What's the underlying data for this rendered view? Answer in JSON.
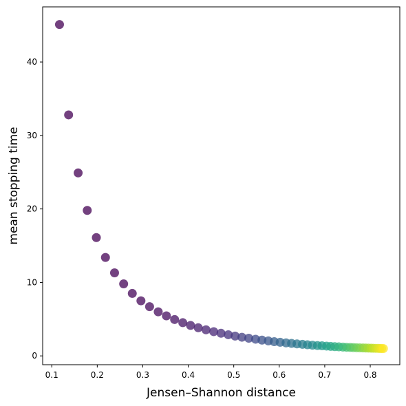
{
  "chart_data": {
    "type": "scatter",
    "title": "",
    "xlabel": "Jensen–Shannon distance",
    "ylabel": "mean stopping time",
    "xlim": [
      0.08,
      0.865
    ],
    "ylim": [
      -1.2,
      47.5
    ],
    "xticks": [
      0.1,
      0.2,
      0.3,
      0.4,
      0.5,
      0.6,
      0.7,
      0.8
    ],
    "xtick_labels": [
      "0.1",
      "0.2",
      "0.3",
      "0.4",
      "0.5",
      "0.6",
      "0.7",
      "0.8"
    ],
    "yticks": [
      0,
      10,
      20,
      30,
      40
    ],
    "ytick_labels": [
      "0",
      "10",
      "20",
      "30",
      "40"
    ],
    "grid": false,
    "legend": "none",
    "colormap": "viridis",
    "marker_alpha": 0.75,
    "x": [
      0.117,
      0.137,
      0.158,
      0.178,
      0.198,
      0.218,
      0.238,
      0.258,
      0.277,
      0.296,
      0.315,
      0.334,
      0.352,
      0.37,
      0.388,
      0.405,
      0.422,
      0.439,
      0.456,
      0.472,
      0.488,
      0.503,
      0.518,
      0.533,
      0.548,
      0.562,
      0.576,
      0.589,
      0.602,
      0.615,
      0.627,
      0.639,
      0.651,
      0.662,
      0.673,
      0.684,
      0.694,
      0.704,
      0.713,
      0.722,
      0.731,
      0.74,
      0.748,
      0.756,
      0.763,
      0.77,
      0.777,
      0.784,
      0.79,
      0.796,
      0.802,
      0.807,
      0.812,
      0.817,
      0.821,
      0.825,
      0.829
    ],
    "y": [
      45.1,
      32.8,
      24.9,
      19.8,
      16.1,
      13.4,
      11.3,
      9.8,
      8.5,
      7.5,
      6.7,
      6.0,
      5.45,
      4.95,
      4.52,
      4.15,
      3.83,
      3.55,
      3.3,
      3.08,
      2.88,
      2.7,
      2.54,
      2.4,
      2.27,
      2.15,
      2.04,
      1.94,
      1.85,
      1.77,
      1.7,
      1.63,
      1.57,
      1.51,
      1.46,
      1.41,
      1.37,
      1.33,
      1.29,
      1.26,
      1.23,
      1.2,
      1.17,
      1.15,
      1.13,
      1.11,
      1.09,
      1.08,
      1.07,
      1.06,
      1.05,
      1.04,
      1.03,
      1.02,
      1.01,
      1.005,
      1.0
    ]
  }
}
